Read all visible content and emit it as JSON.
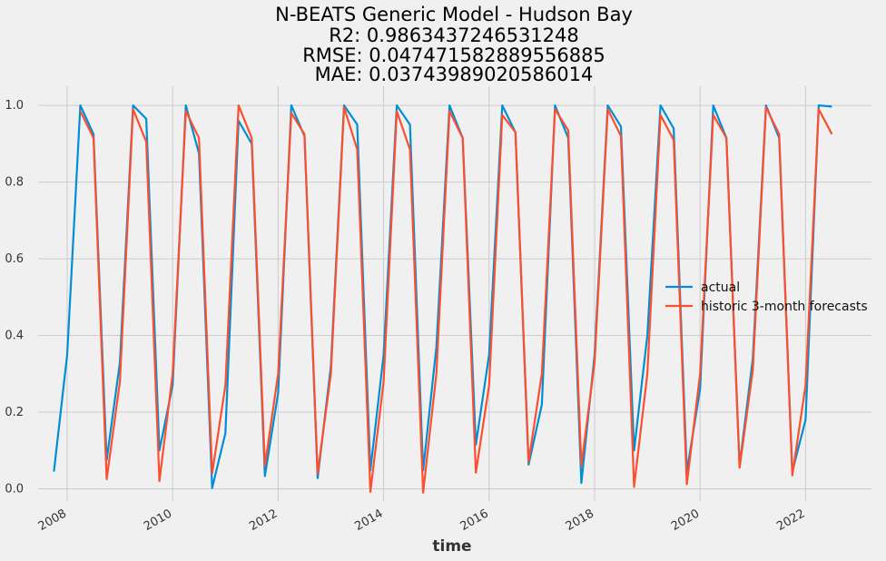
{
  "chart_data": {
    "type": "line",
    "title_lines": [
      "N-BEATS Generic Model - Hudson Bay",
      "R2: 0.9863437246531248",
      "RMSE: 0.047471582889556885",
      "MAE: 0.03743989020586014"
    ],
    "xlabel": "time",
    "ylabel": "",
    "xlim": [
      2007.45,
      2023.25
    ],
    "ylim": [
      -0.032,
      1.05
    ],
    "x_ticks": [
      2008,
      2010,
      2012,
      2014,
      2016,
      2018,
      2020,
      2022
    ],
    "x_tick_labels": [
      "2008",
      "2010",
      "2012",
      "2014",
      "2016",
      "2018",
      "2020",
      "2022"
    ],
    "y_ticks": [
      0.0,
      0.2,
      0.4,
      0.6,
      0.8,
      1.0
    ],
    "y_tick_labels": [
      "0.0",
      "0.2",
      "0.4",
      "0.6",
      "0.8",
      "1.0"
    ],
    "grid": true,
    "legend_position": "center-right",
    "series": [
      {
        "name": "actual",
        "color": "#008fd5",
        "x": [
          2007.75,
          2008.0,
          2008.25,
          2008.5,
          2008.75,
          2009.0,
          2009.25,
          2009.5,
          2009.75,
          2010.0,
          2010.25,
          2010.5,
          2010.75,
          2011.0,
          2011.25,
          2011.5,
          2011.75,
          2012.0,
          2012.25,
          2012.5,
          2012.75,
          2013.0,
          2013.25,
          2013.5,
          2013.75,
          2014.0,
          2014.25,
          2014.5,
          2014.75,
          2015.0,
          2015.25,
          2015.5,
          2015.75,
          2016.0,
          2016.25,
          2016.5,
          2016.75,
          2017.0,
          2017.25,
          2017.5,
          2017.75,
          2018.0,
          2018.25,
          2018.5,
          2018.75,
          2019.0,
          2019.25,
          2019.5,
          2019.75,
          2020.0,
          2020.25,
          2020.5,
          2020.75,
          2021.0,
          2021.25,
          2021.5,
          2021.75,
          2022.0,
          2022.25,
          2022.5
        ],
        "values": [
          0.045,
          0.35,
          1.0,
          0.925,
          0.075,
          0.33,
          1.0,
          0.965,
          0.1,
          0.27,
          1.0,
          0.875,
          0.002,
          0.145,
          0.96,
          0.9,
          0.033,
          0.25,
          1.0,
          0.92,
          0.028,
          0.32,
          1.0,
          0.95,
          0.048,
          0.35,
          1.0,
          0.95,
          0.048,
          0.37,
          1.0,
          0.915,
          0.115,
          0.35,
          1.0,
          0.93,
          0.063,
          0.22,
          1.0,
          0.915,
          0.015,
          0.35,
          1.0,
          0.945,
          0.1,
          0.4,
          1.0,
          0.94,
          0.045,
          0.26,
          1.0,
          0.915,
          0.06,
          0.34,
          1.0,
          0.915,
          0.045,
          0.18,
          1.0,
          0.997
        ]
      },
      {
        "name": "historic 3-month forecasts",
        "color": "#fc4f30",
        "x": [
          2008.25,
          2008.5,
          2008.75,
          2009.0,
          2009.25,
          2009.5,
          2009.75,
          2010.0,
          2010.25,
          2010.5,
          2010.75,
          2011.0,
          2011.25,
          2011.5,
          2011.75,
          2012.0,
          2012.25,
          2012.5,
          2012.75,
          2013.0,
          2013.25,
          2013.5,
          2013.75,
          2014.0,
          2014.25,
          2014.5,
          2014.75,
          2015.0,
          2015.25,
          2015.5,
          2015.75,
          2016.0,
          2016.25,
          2016.5,
          2016.75,
          2017.0,
          2017.25,
          2017.5,
          2017.75,
          2018.0,
          2018.25,
          2018.5,
          2018.75,
          2019.0,
          2019.25,
          2019.5,
          2019.75,
          2020.0,
          2020.25,
          2020.5,
          2020.75,
          2021.0,
          2021.25,
          2021.5,
          2021.75,
          2022.0,
          2022.25,
          2022.5
        ],
        "values": [
          0.985,
          0.915,
          0.025,
          0.28,
          0.99,
          0.905,
          0.02,
          0.3,
          0.985,
          0.915,
          0.04,
          0.27,
          1.0,
          0.915,
          0.06,
          0.3,
          0.98,
          0.925,
          0.04,
          0.3,
          0.995,
          0.885,
          -0.008,
          0.28,
          0.985,
          0.885,
          -0.01,
          0.3,
          0.985,
          0.915,
          0.042,
          0.27,
          0.975,
          0.93,
          0.07,
          0.3,
          0.99,
          0.935,
          0.06,
          0.33,
          0.99,
          0.92,
          0.005,
          0.3,
          0.975,
          0.91,
          0.012,
          0.3,
          0.975,
          0.915,
          0.055,
          0.31,
          0.995,
          0.925,
          0.035,
          0.27,
          0.99,
          0.925
        ]
      }
    ]
  }
}
